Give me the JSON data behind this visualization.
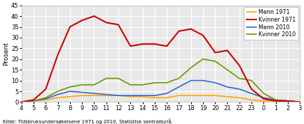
{
  "x_labels": [
    "4",
    "5",
    "6",
    "7",
    "8",
    "9",
    "10",
    "11",
    "12",
    "13",
    "14",
    "15",
    "16",
    "17",
    "18",
    "19",
    "20",
    "21",
    "22",
    "23",
    "0",
    "1",
    "2",
    "3"
  ],
  "x_values": [
    4,
    5,
    6,
    7,
    8,
    9,
    10,
    11,
    12,
    13,
    14,
    15,
    16,
    17,
    18,
    19,
    20,
    21,
    22,
    23,
    24,
    25,
    26,
    27
  ],
  "menn_1971": [
    0,
    0.5,
    1,
    2,
    2.5,
    3,
    3,
    3,
    3,
    2.5,
    2.5,
    2,
    2,
    3,
    3,
    3,
    3,
    2.5,
    2,
    1,
    0.5,
    0.5,
    0.5,
    0
  ],
  "kvinner_1971": [
    0,
    1,
    6,
    22,
    35,
    38,
    40,
    37,
    36,
    26,
    27,
    27,
    26,
    33,
    34,
    31,
    23,
    24,
    17,
    6,
    1.5,
    0.5,
    0.5,
    0
  ],
  "menn_2010": [
    0,
    0.5,
    1.5,
    3.5,
    5,
    4.5,
    4,
    3.5,
    3,
    3,
    3,
    3,
    4,
    7,
    10,
    10,
    9,
    7,
    6,
    4,
    2,
    1,
    0.5,
    0
  ],
  "kvinner_2010": [
    0,
    0.5,
    2,
    5,
    7,
    8,
    8,
    11,
    11,
    8,
    8,
    9,
    9,
    11,
    16,
    20,
    19,
    15,
    11,
    10,
    4,
    1,
    0.5,
    0
  ],
  "colors": {
    "menn_1971": "#FFA500",
    "kvinner_1971": "#CC0000",
    "menn_2010": "#3366CC",
    "kvinner_2010": "#669900"
  },
  "ylabel": "Prosent",
  "ylim": [
    0,
    45
  ],
  "yticks": [
    0,
    5,
    10,
    15,
    20,
    25,
    30,
    35,
    40,
    45
  ],
  "source": "Kilde: Tidsbruksundersøkelsene 1971 og 2010, Statistisk sentralbyrå.",
  "legend": [
    "Menn 1971",
    "Kvinner 1971",
    "Menn 2010",
    "Kvinner 2010"
  ],
  "background_color": "#e8e8e8",
  "grid_color": "#ffffff",
  "figsize": [
    4.35,
    1.78
  ],
  "dpi": 100
}
